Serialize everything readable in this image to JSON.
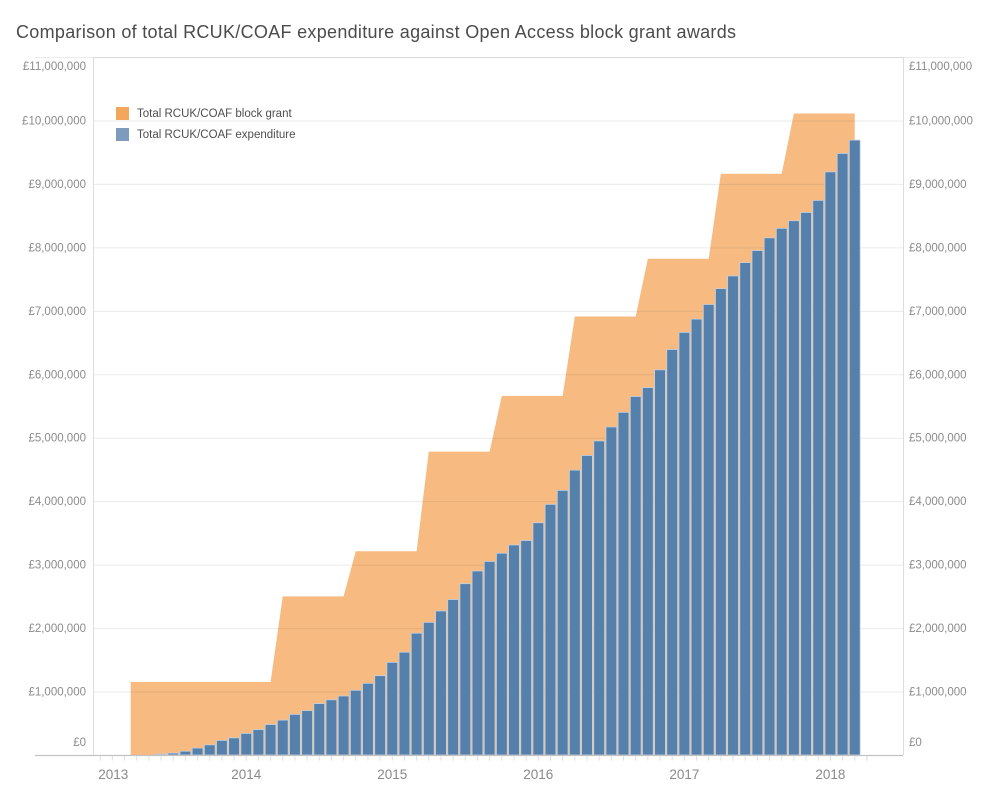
{
  "title": "Comparison of total RCUK/COAF expenditure against Open Access block grant awards",
  "legend": [
    {
      "label": "Total RCUK/COAF block grant",
      "color": "#F3A75C"
    },
    {
      "label": "Total RCUK/COAF expenditure",
      "color": "#7E9ABD"
    }
  ],
  "y_axis": {
    "tick_labels": [
      "£0",
      "£1,000,000",
      "£2,000,000",
      "£3,000,000",
      "£4,000,000",
      "£5,000,000",
      "£6,000,000",
      "£7,000,000",
      "£8,000,000",
      "£9,000,000",
      "£10,000,000",
      "£11,000,000"
    ],
    "tick_values": [
      0,
      1000000,
      2000000,
      3000000,
      4000000,
      5000000,
      6000000,
      7000000,
      8000000,
      9000000,
      10000000,
      11000000
    ]
  },
  "x_axis": {
    "year_labels": [
      "2013",
      "2014",
      "2015",
      "2016",
      "2017",
      "2018"
    ]
  },
  "colors": {
    "gridline": "rgba(90,90,90,0.13)",
    "axis_label": "#8B8B8B",
    "title": "#4B4B4B",
    "baseline": "#C2C2C2",
    "pane_border": "#DDDDDD",
    "tick": "#DCDCDC"
  },
  "chart_data": {
    "type": "combo",
    "title": "Comparison of total RCUK/COAF expenditure against Open Access block grant awards",
    "xlabel": "",
    "ylabel": "",
    "ylim": [
      0,
      11000000
    ],
    "x_range": [
      "2013-01",
      "2018-06"
    ],
    "grid": true,
    "legend_position": "top-left",
    "series": [
      {
        "name": "Total RCUK/COAF block grant",
        "type": "step-area",
        "color": "#F7BA80",
        "steps": [
          {
            "month": "2013-04",
            "value": 1150000
          },
          {
            "month": "2014-04",
            "value": 2500000
          },
          {
            "month": "2014-10",
            "value": 3210000
          },
          {
            "month": "2015-04",
            "value": 4780000
          },
          {
            "month": "2015-10",
            "value": 5660000
          },
          {
            "month": "2016-04",
            "value": 6910000
          },
          {
            "month": "2016-10",
            "value": 7820000
          },
          {
            "month": "2017-04",
            "value": 9160000
          },
          {
            "month": "2017-10",
            "value": 10110000
          }
        ],
        "end_month": "2018-03"
      },
      {
        "name": "Total RCUK/COAF expenditure",
        "type": "bar",
        "color": "#5580AC",
        "stroke": "#C3D0DE",
        "start_month": "2013-06",
        "frequency": "monthly-cumulative",
        "values": [
          15000,
          30000,
          60000,
          110000,
          160000,
          230000,
          270000,
          340000,
          400000,
          480000,
          550000,
          640000,
          700000,
          810000,
          870000,
          930000,
          1020000,
          1130000,
          1250000,
          1460000,
          1620000,
          1920000,
          2090000,
          2270000,
          2450000,
          2700000,
          2900000,
          3050000,
          3180000,
          3310000,
          3380000,
          3660000,
          3950000,
          4170000,
          4490000,
          4720000,
          4950000,
          5170000,
          5400000,
          5650000,
          5790000,
          6070000,
          6390000,
          6660000,
          6870000,
          7100000,
          7350000,
          7550000,
          7760000,
          7950000,
          8150000,
          8300000,
          8420000,
          8550000,
          8740000,
          9190000,
          9480000,
          9690000
        ]
      }
    ]
  }
}
